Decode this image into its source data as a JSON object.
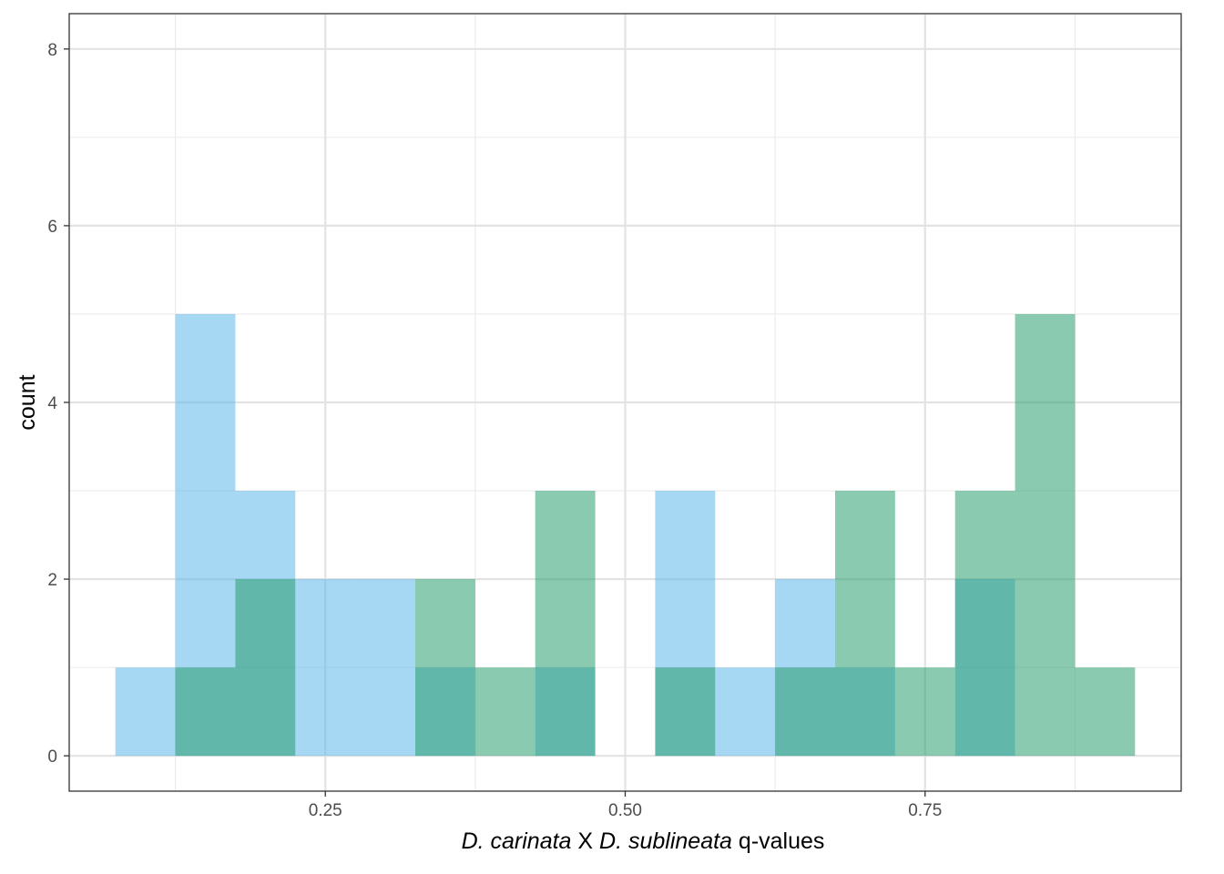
{
  "chart_data": {
    "type": "histogram",
    "title": "",
    "xlabel": {
      "parts": [
        {
          "text": "D. carinata",
          "italic": true
        },
        {
          "text": " X ",
          "italic": false
        },
        {
          "text": "D. sublineata",
          "italic": true
        },
        {
          "text": " q-values",
          "italic": false
        }
      ]
    },
    "ylabel": "count",
    "xlim": [
      0.0365,
      0.9635
    ],
    "ylim": [
      -0.4,
      8.4
    ],
    "x_ticks": [
      0.25,
      0.5,
      0.75
    ],
    "x_tick_labels": [
      "0.25",
      "0.50",
      "0.75"
    ],
    "x_minor_ticks": [
      0.125,
      0.375,
      0.625,
      0.875
    ],
    "y_ticks": [
      0,
      2,
      4,
      6,
      8
    ],
    "y_tick_labels": [
      "0",
      "2",
      "4",
      "6",
      "8"
    ],
    "y_minor_ticks": [
      1,
      3,
      5,
      7
    ],
    "grid": true,
    "bin_width": 0.05,
    "bin_centers": [
      0.1,
      0.15,
      0.2,
      0.25,
      0.3,
      0.35,
      0.4,
      0.45,
      0.5,
      0.55,
      0.6,
      0.65,
      0.7,
      0.75,
      0.8,
      0.85,
      0.9
    ],
    "series": [
      {
        "key": "blue",
        "color": "#56B4E9",
        "opacity": 0.53,
        "values": [
          1,
          5,
          3,
          2,
          2,
          1,
          0,
          1,
          0,
          3,
          1,
          2,
          1,
          0,
          2,
          0,
          0
        ]
      },
      {
        "key": "green",
        "color": "#229A6A",
        "opacity": 0.53,
        "values": [
          0,
          1,
          2,
          0,
          0,
          2,
          1,
          3,
          0,
          1,
          0,
          1,
          3,
          1,
          3,
          5,
          1
        ]
      }
    ]
  }
}
